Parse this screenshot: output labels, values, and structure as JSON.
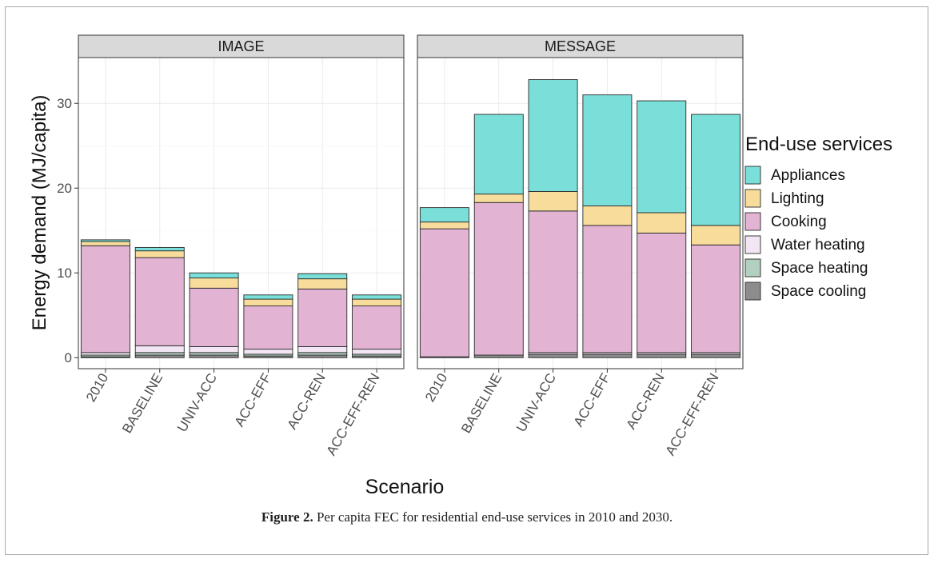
{
  "figure": {
    "caption_label": "Figure 2.",
    "caption_text": "Per capita FEC for residential end-use services in 2010 and 2030."
  },
  "chart_data": {
    "type": "bar",
    "stacked": true,
    "ylabel": "Energy demand (MJ/capita)",
    "xlabel": "Scenario",
    "ylim": [
      -1.3,
      35.4
    ],
    "yticks": [
      0,
      10,
      20,
      30
    ],
    "grid": true,
    "legend": {
      "title": "End-use services",
      "position": "right"
    },
    "categories": [
      "2010",
      "BASELINE",
      "UNIV-ACC",
      "ACC-EFF",
      "ACC-REN",
      "ACC-EFF-REN"
    ],
    "series_order": [
      "Space cooling",
      "Space heating",
      "Water heating",
      "Cooking",
      "Lighting",
      "Appliances"
    ],
    "legend_order": [
      "Appliances",
      "Lighting",
      "Cooking",
      "Water heating",
      "Space heating",
      "Space cooling"
    ],
    "colors": {
      "Appliances": "#7adfd8",
      "Lighting": "#f7dc9c",
      "Cooking": "#e2b3d3",
      "Water heating": "#f3e6f4",
      "Space heating": "#b2cfbf",
      "Space cooling": "#8c8c8c"
    },
    "panels": [
      {
        "title": "IMAGE",
        "series": [
          {
            "name": "Space cooling",
            "values": [
              0.1,
              0.3,
              0.3,
              0.2,
              0.3,
              0.2
            ]
          },
          {
            "name": "Space heating",
            "values": [
              0.2,
              0.3,
              0.3,
              0.2,
              0.3,
              0.2
            ]
          },
          {
            "name": "Water heating",
            "values": [
              0.3,
              0.8,
              0.7,
              0.6,
              0.7,
              0.6
            ]
          },
          {
            "name": "Cooking",
            "values": [
              12.6,
              10.4,
              6.9,
              5.1,
              6.8,
              5.1
            ]
          },
          {
            "name": "Lighting",
            "values": [
              0.5,
              0.8,
              1.2,
              0.8,
              1.2,
              0.8
            ]
          },
          {
            "name": "Appliances",
            "values": [
              0.2,
              0.4,
              0.6,
              0.5,
              0.6,
              0.5
            ]
          }
        ]
      },
      {
        "title": "MESSAGE",
        "series": [
          {
            "name": "Space cooling",
            "values": [
              0.1,
              0.3,
              0.4,
              0.4,
              0.4,
              0.4
            ]
          },
          {
            "name": "Space heating",
            "values": [
              0.0,
              0.0,
              0.0,
              0.0,
              0.0,
              0.0
            ]
          },
          {
            "name": "Water heating",
            "values": [
              0.0,
              0.0,
              0.2,
              0.2,
              0.2,
              0.2
            ]
          },
          {
            "name": "Cooking",
            "values": [
              15.1,
              18.0,
              16.7,
              15.0,
              14.1,
              12.7
            ]
          },
          {
            "name": "Lighting",
            "values": [
              0.8,
              1.0,
              2.3,
              2.3,
              2.4,
              2.3
            ]
          },
          {
            "name": "Appliances",
            "values": [
              1.7,
              9.4,
              13.2,
              13.1,
              13.2,
              13.1
            ]
          }
        ]
      }
    ]
  }
}
